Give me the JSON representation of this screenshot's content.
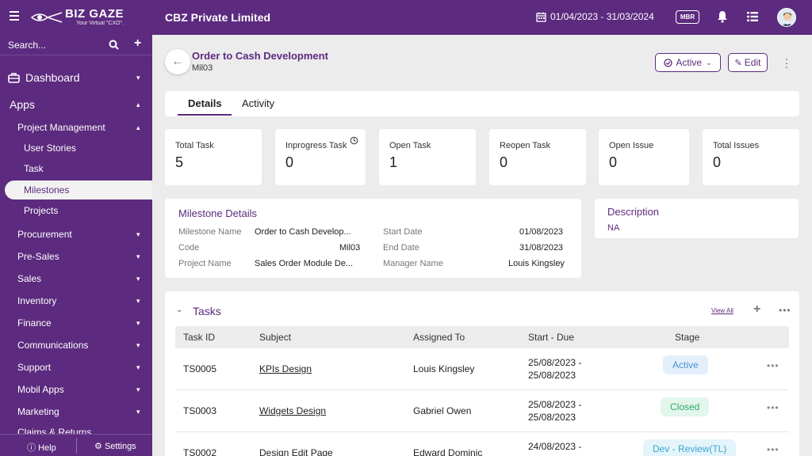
{
  "topbar": {
    "logo_name": "BIZ GAZE",
    "logo_tagline": "Your Virtual \"CXO\".",
    "company": "CBZ Private Limited",
    "date_range": "01/04/2023 - 31/03/2024",
    "mbr_label": "MBR",
    "icons": [
      "menu-icon",
      "calendar-icon",
      "bell-icon",
      "list-icon",
      "avatar"
    ]
  },
  "sidebar": {
    "search_placeholder": "Search...",
    "dashboard": "Dashboard",
    "apps": "Apps",
    "project_management": "Project Management",
    "sub_items": [
      "User Stories",
      "Task",
      "Milestones",
      "Projects"
    ],
    "modules": [
      "Procurement",
      "Pre-Sales",
      "Sales",
      "Inventory",
      "Finance",
      "Communications",
      "Support",
      "Mobil Apps",
      "Marketing",
      "Claims & Returns"
    ],
    "help": "Help",
    "settings": "Settings"
  },
  "header": {
    "title": "Order to Cash Development",
    "subtitle": "Mil03",
    "status_button": "Active",
    "edit_button": "Edit"
  },
  "tabs": [
    "Details",
    "Activity"
  ],
  "stats": [
    {
      "label": "Total Task",
      "value": "5"
    },
    {
      "label": "Inprogress Task",
      "value": "0"
    },
    {
      "label": "Open Task",
      "value": "1"
    },
    {
      "label": "Reopen Task",
      "value": "0"
    },
    {
      "label": "Open Issue",
      "value": "0"
    },
    {
      "label": "Total Issues",
      "value": "0"
    }
  ],
  "milestone_details": {
    "title": "Milestone Details",
    "fields": {
      "name_label": "Milestone Name",
      "name_value": "Order to Cash Develop...",
      "code_label": "Code",
      "code_value": "Mil03",
      "project_label": "Project Name",
      "project_value": "Sales Order Module De...",
      "start_label": "Start Date",
      "start_value": "01/08/2023",
      "end_label": "End Date",
      "end_value": "31/08/2023",
      "manager_label": "Manager Name",
      "manager_value": "Louis Kingsley"
    }
  },
  "description": {
    "title": "Description",
    "value": "NA"
  },
  "tasks": {
    "title": "Tasks",
    "view_all": "View All",
    "columns": [
      "Task ID",
      "Subject",
      "Assigned To",
      "Start - Due",
      "Stage"
    ],
    "rows": [
      {
        "id": "TS0005",
        "subject": "KPIs Design",
        "assigned": "Louis Kingsley",
        "start": "25/08/2023 -",
        "due": "25/08/2023",
        "stage": "Active"
      },
      {
        "id": "TS0003",
        "subject": "Widgets Design",
        "assigned": "Gabriel Owen",
        "start": "25/08/2023 -",
        "due": "25/08/2023",
        "stage": "Closed"
      },
      {
        "id": "TS0002",
        "subject": "Design Edit Page",
        "assigned": "Edward Dominic",
        "start": "24/08/2023 -",
        "due": "",
        "stage": "Dev - Review(TL)"
      }
    ]
  },
  "colors": {
    "brand": "#5c2a7e",
    "badge_active_bg": "#e3f0fb",
    "badge_active_fg": "#4a90d0",
    "badge_closed_bg": "#e2f6ec",
    "badge_closed_fg": "#2fa86a",
    "badge_review_bg": "#e3f4fb",
    "badge_review_fg": "#3fa6cf"
  }
}
